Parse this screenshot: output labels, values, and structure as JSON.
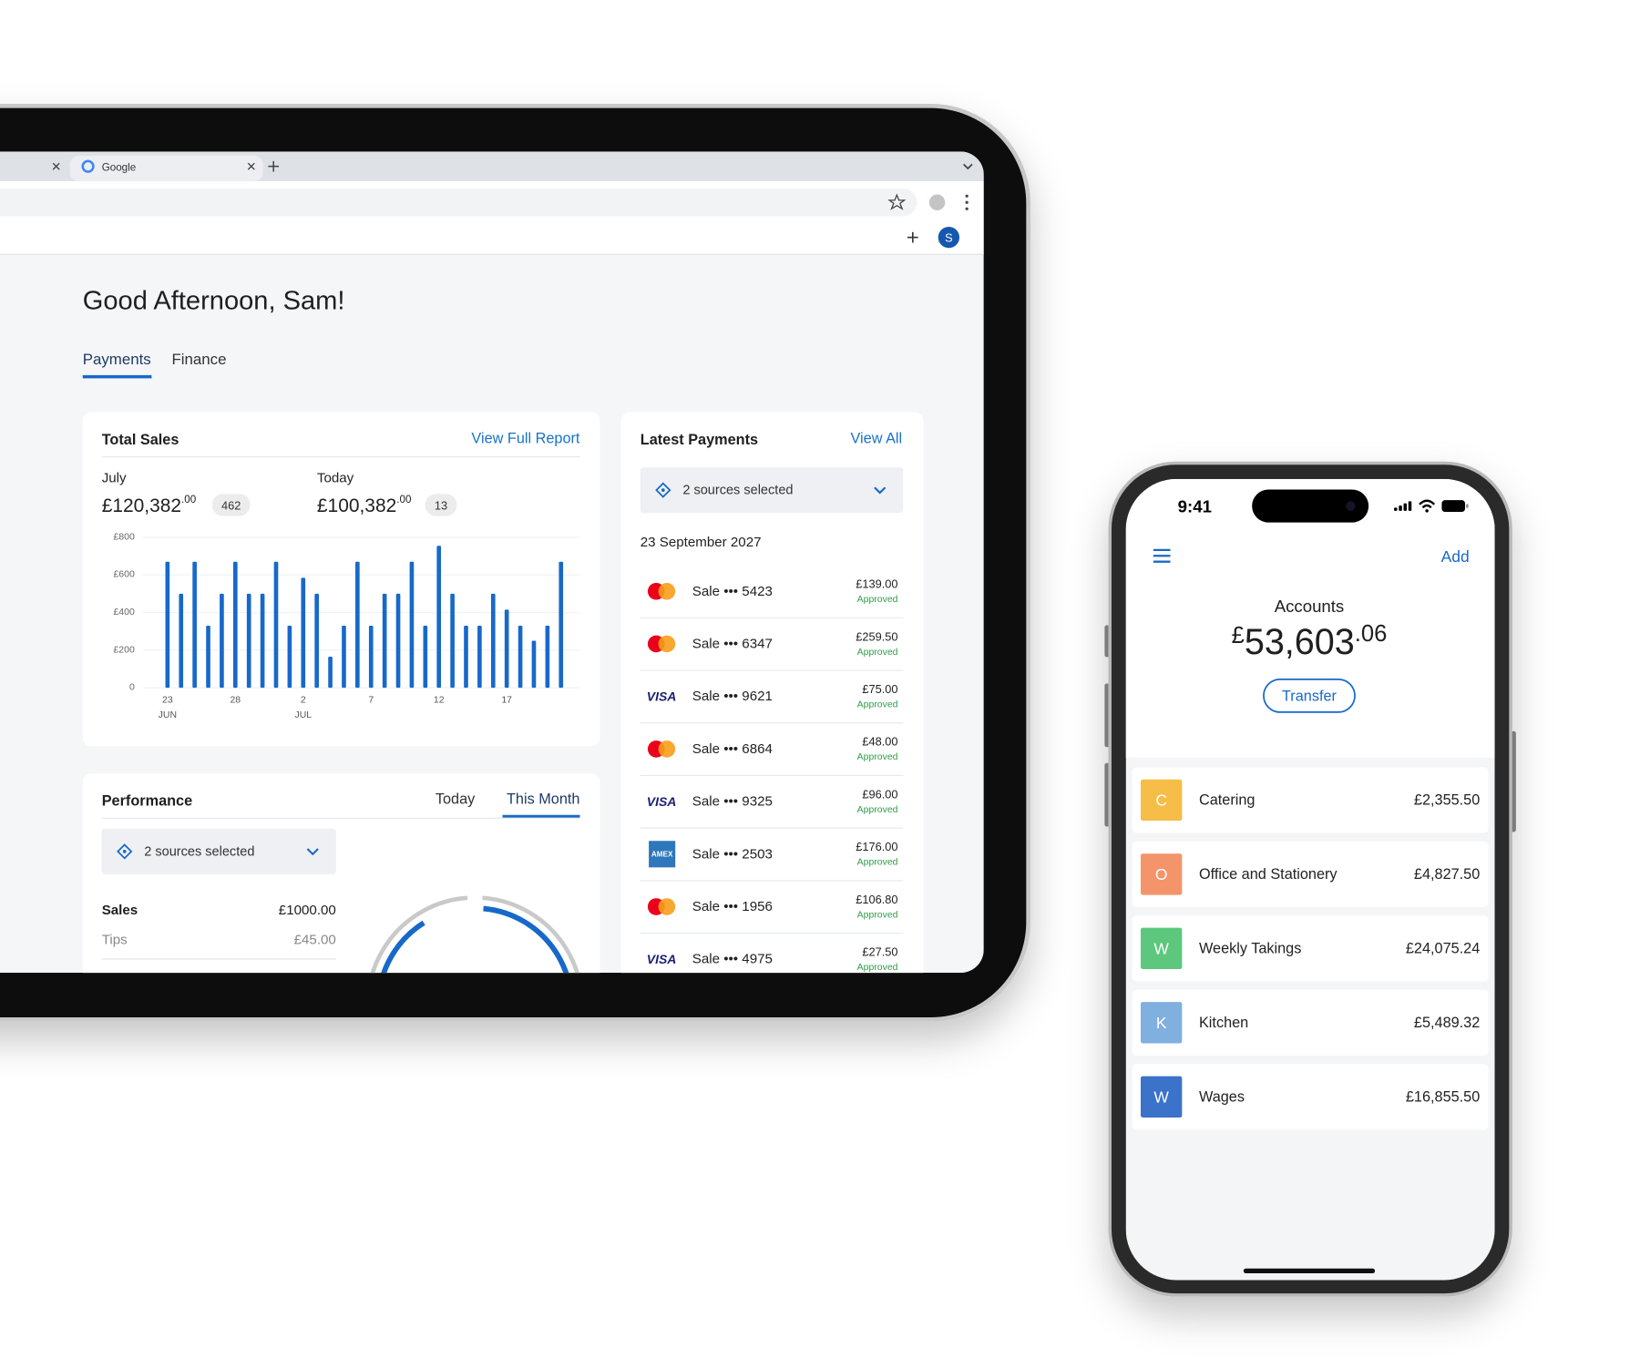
{
  "browser": {
    "tab_title": "Google",
    "avatar": "S"
  },
  "page": {
    "greeting": "Good Afternoon, Sam!",
    "tabs": [
      "Payments",
      "Finance"
    ]
  },
  "total_sales": {
    "title": "Total Sales",
    "link": "View Full Report",
    "stats": [
      {
        "label": "July",
        "amount": "£120,382",
        "cents": ".00",
        "count": "462"
      },
      {
        "label": "Today",
        "amount": "£100,382",
        "cents": ".00",
        "count": "13"
      }
    ]
  },
  "chart_data": {
    "type": "bar",
    "categories": [
      "23",
      null,
      null,
      null,
      null,
      "28",
      null,
      null,
      null,
      null,
      "2",
      null,
      null,
      null,
      null,
      "7",
      null,
      null,
      null,
      null,
      "12",
      null,
      null,
      null,
      null,
      "17",
      null,
      null,
      null,
      null
    ],
    "category_months": [
      "JUN",
      null,
      null,
      null,
      null,
      null,
      null,
      null,
      null,
      null,
      "JUL",
      null,
      null,
      null,
      null,
      null,
      null,
      null,
      null,
      null,
      null,
      null,
      null,
      null,
      null,
      null,
      null,
      null,
      null,
      null
    ],
    "values": [
      670,
      500,
      670,
      330,
      500,
      670,
      500,
      500,
      670,
      330,
      585,
      500,
      165,
      330,
      670,
      330,
      500,
      500,
      670,
      330,
      755,
      500,
      330,
      330,
      500,
      415,
      330,
      250,
      330,
      670
    ],
    "color": "#1769c9",
    "ylim": [
      0,
      800
    ],
    "yticks": [
      0,
      {
        "value": 200,
        "label": "£200"
      },
      {
        "value": 400,
        "label": "£400"
      },
      {
        "value": 600,
        "label": "£600"
      },
      {
        "value": 800,
        "label": "£800"
      }
    ],
    "grid": true
  },
  "performance": {
    "title": "Performance",
    "tabs": [
      "Today",
      "This Month"
    ],
    "source_select": "2 sources selected",
    "rows": [
      {
        "label": "Sales",
        "value": "£1000.00"
      },
      {
        "label": "Tips",
        "value": "£45.00"
      }
    ]
  },
  "latest_payments": {
    "title": "Latest Payments",
    "link": "View All",
    "source_select": "2 sources selected",
    "date": "23 September 2027",
    "items": [
      {
        "brand": "mastercard",
        "label": "Sale ••• 5423",
        "amount": "£139.00",
        "status": "Approved"
      },
      {
        "brand": "mastercard",
        "label": "Sale ••• 6347",
        "amount": "£259.50",
        "status": "Approved"
      },
      {
        "brand": "visa",
        "label": "Sale ••• 9621",
        "amount": "£75.00",
        "status": "Approved"
      },
      {
        "brand": "mastercard",
        "label": "Sale ••• 6864",
        "amount": "£48.00",
        "status": "Approved"
      },
      {
        "brand": "visa",
        "label": "Sale ••• 9325",
        "amount": "£96.00",
        "status": "Approved"
      },
      {
        "brand": "amex",
        "label": "Sale ••• 2503",
        "amount": "£176.00",
        "status": "Approved"
      },
      {
        "brand": "mastercard",
        "label": "Sale ••• 1956",
        "amount": "£106.80",
        "status": "Approved"
      },
      {
        "brand": "visa",
        "label": "Sale ••• 4975",
        "amount": "£27.50",
        "status": "Approved"
      }
    ]
  },
  "phone": {
    "time": "9:41",
    "add": "Add",
    "title": "Accounts",
    "currency": "£",
    "balance": "53,603",
    "cents": ".06",
    "transfer": "Transfer",
    "accounts": [
      {
        "initial": "C",
        "name": "Catering",
        "amount": "£2,355.50",
        "color": "#f6bd48"
      },
      {
        "initial": "O",
        "name": "Office and Stationery",
        "amount": "£4,827.50",
        "color": "#f4946b"
      },
      {
        "initial": "W",
        "name": "Weekly Takings",
        "amount": "£24,075.24",
        "color": "#5cc77d"
      },
      {
        "initial": "K",
        "name": "Kitchen",
        "amount": "£5,489.32",
        "color": "#80b0df"
      },
      {
        "initial": "W",
        "name": "Wages",
        "amount": "£16,855.50",
        "color": "#3a73c9"
      }
    ]
  }
}
